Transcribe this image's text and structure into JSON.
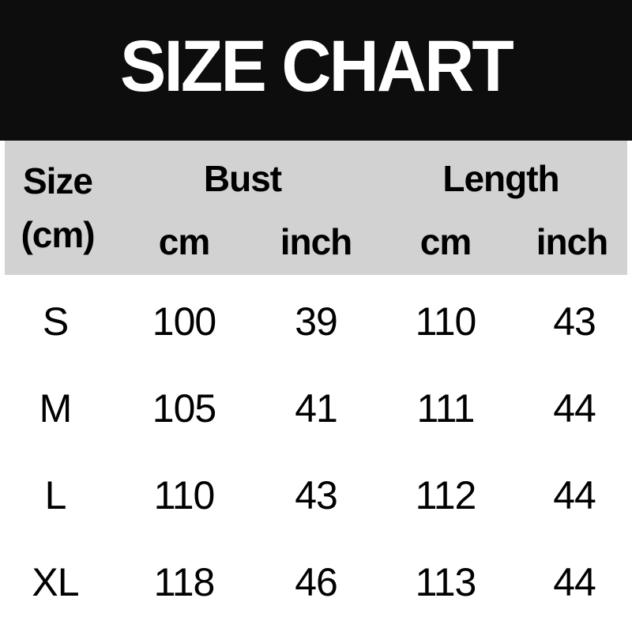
{
  "banner": {
    "title": "SIZE CHART"
  },
  "table_header": {
    "size_label": "Size",
    "size_unit": "(cm)",
    "bust_label": "Bust",
    "length_label": "Length",
    "unit_cm": "cm",
    "unit_inch": "inch"
  },
  "chart_data": {
    "type": "table",
    "title": "SIZE CHART",
    "columns": [
      "Size (cm)",
      "Bust cm",
      "Bust inch",
      "Length cm",
      "Length inch"
    ],
    "rows": [
      [
        "S",
        100,
        39,
        110,
        43
      ],
      [
        "M",
        105,
        41,
        111,
        44
      ],
      [
        "L",
        110,
        43,
        112,
        44
      ],
      [
        "XL",
        118,
        46,
        113,
        44
      ]
    ]
  },
  "colors": {
    "banner_bg": "#0d0d0d",
    "banner_text": "#ffffff",
    "header_band_bg": "#d2d2d2",
    "body_bg": "#ffffff",
    "text": "#000000"
  }
}
